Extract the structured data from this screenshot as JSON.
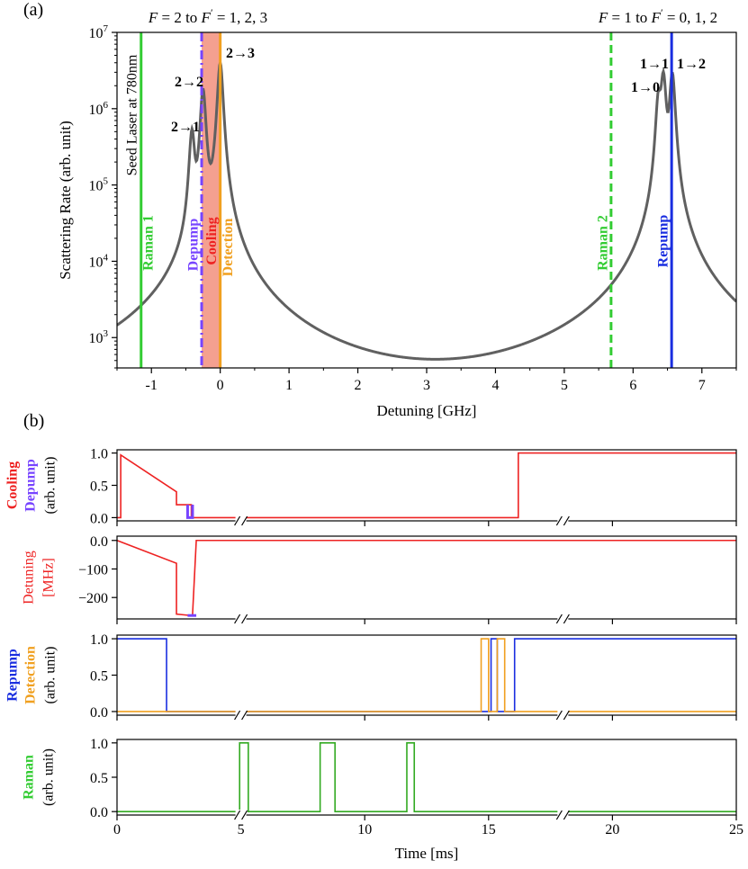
{
  "chart_data": [
    {
      "panel_label": "(a)",
      "type": "line",
      "xlabel": "Detuning [GHz]",
      "ylabel": "Scattering Rate  (arb. unit)",
      "xlim": [
        -1.5,
        7.5
      ],
      "ylim": [
        400,
        10000000
      ],
      "y_scale": "log",
      "x_ticks": [
        "-1",
        "0",
        "1",
        "2",
        "3",
        "4",
        "5",
        "6",
        "7"
      ],
      "y_ticks": [
        {
          "base": "10",
          "exp": "3"
        },
        {
          "base": "10",
          "exp": "4"
        },
        {
          "base": "10",
          "exp": "5"
        },
        {
          "base": "10",
          "exp": "6"
        },
        {
          "base": "10",
          "exp": "7"
        }
      ],
      "header_left": {
        "pre": "F = 2 to F",
        "post": " = 1, 2, 3"
      },
      "header_right": {
        "pre": "F = 1 to F",
        "post": " = 0, 1, 2"
      },
      "series": [
        {
          "color": "#606060",
          "resonances": [
            {
              "label": "2→1",
              "x": -0.41,
              "y": 500000
            },
            {
              "label": "2→2",
              "x": -0.25,
              "y": 1800000
            },
            {
              "label": "2→3",
              "x": 0.0,
              "y": 4000000
            },
            {
              "label": "1→0",
              "x": 6.37,
              "y": 1400000
            },
            {
              "label": "1→1",
              "x": 6.44,
              "y": 2800000
            },
            {
              "label": "1→2",
              "x": 6.57,
              "y": 2900000
            }
          ],
          "minimum": {
            "x": 3.2,
            "y": 520
          }
        }
      ],
      "vertical_lines": [
        {
          "label": "Raman 1",
          "x": -1.15,
          "color": "#33cc33",
          "style": "solid"
        },
        {
          "label": "Depump",
          "x": -0.27,
          "color": "#7744ff",
          "style": "dashdot"
        },
        {
          "label": "Cooling",
          "x": -0.12,
          "color": "#ee2222",
          "style": "band"
        },
        {
          "label": "Detection",
          "x": 0.0,
          "color": "#f0a020",
          "style": "solid"
        },
        {
          "label": "Raman 2",
          "x": 5.68,
          "color": "#33cc33",
          "style": "dashed"
        },
        {
          "label": "Repump",
          "x": 6.56,
          "color": "#1a2ee0",
          "style": "solid"
        }
      ],
      "band": {
        "x": [
          -0.27,
          0.0
        ],
        "color": "#f4a090"
      },
      "annotation": "Seed Laser at 780nm"
    },
    {
      "panel_label": "(b)",
      "type": "line",
      "xlabel": "Time [ms]",
      "xlim": [
        0,
        25
      ],
      "x_ticks": [
        "0",
        "5",
        "10",
        "15",
        "20",
        "25"
      ],
      "axis_breaks": [
        5,
        18
      ],
      "subplots": [
        {
          "ylabels": [
            {
              "text": "Cooling",
              "color": "#ee2222"
            },
            {
              "text": "Depump",
              "color": "#7744ff"
            },
            {
              "text": "(arb. unit)",
              "color": "#000000"
            }
          ],
          "ylim": [
            -0.05,
            1.05
          ],
          "y_ticks": [
            "0.0",
            "0.5",
            "1.0"
          ],
          "series": [
            {
              "name": "Cooling",
              "color": "#ee2222",
              "points": [
                [
                  0,
                  0
                ],
                [
                  0.15,
                  0
                ],
                [
                  0.15,
                  0.97
                ],
                [
                  2.4,
                  0.4
                ],
                [
                  2.4,
                  0.2
                ],
                [
                  3.0,
                  0.2
                ],
                [
                  3.0,
                  0
                ],
                [
                  14.5,
                  0
                ],
                [
                  14.5,
                  0
                ],
                [
                  16.2,
                  0
                ],
                [
                  16.2,
                  1.0
                ],
                [
                  25,
                  1.0
                ]
              ]
            },
            {
              "name": "Depump",
              "color": "#7744ff",
              "points": [
                [
                  2.85,
                  0.2
                ],
                [
                  2.85,
                  0
                ],
                [
                  3.05,
                  0
                ],
                [
                  3.05,
                  0.2
                ]
              ]
            }
          ]
        },
        {
          "ylabels": [
            {
              "text": "Detuning",
              "color": "#ee2222"
            },
            {
              "text": "[MHz]",
              "color": "#ee2222"
            }
          ],
          "ylim": [
            -275,
            15
          ],
          "y_ticks": [
            "0.0",
            "−100",
            "−200"
          ],
          "series": [
            {
              "name": "Detuning",
              "color": "#ee2222",
              "points": [
                [
                  0,
                  0
                ],
                [
                  2.4,
                  -80
                ],
                [
                  2.4,
                  -80
                ],
                [
                  2.4,
                  -258
                ],
                [
                  2.85,
                  -262
                ],
                [
                  3.05,
                  -262
                ],
                [
                  3.05,
                  -258
                ],
                [
                  3.2,
                  0
                ],
                [
                  25,
                  0
                ]
              ]
            },
            {
              "name": "Depump detuning",
              "color": "#7744ff",
              "points": [
                [
                  2.85,
                  -263
                ],
                [
                  3.2,
                  -263
                ]
              ]
            }
          ]
        },
        {
          "ylabels": [
            {
              "text": "Repump",
              "color": "#1a2ee0"
            },
            {
              "text": "Detection",
              "color": "#f0a020"
            },
            {
              "text": "(arb. unit)",
              "color": "#000000"
            }
          ],
          "ylim": [
            -0.05,
            1.05
          ],
          "y_ticks": [
            "0.0",
            "0.5",
            "1.0"
          ],
          "series": [
            {
              "name": "Repump",
              "color": "#1a2ee0",
              "points": [
                [
                  0,
                  1
                ],
                [
                  2.0,
                  1
                ],
                [
                  2.0,
                  0
                ],
                [
                  15.1,
                  0
                ],
                [
                  15.1,
                  1
                ],
                [
                  15.35,
                  1
                ],
                [
                  15.35,
                  0
                ],
                [
                  16.05,
                  0
                ],
                [
                  16.05,
                  1
                ],
                [
                  25,
                  1
                ]
              ]
            },
            {
              "name": "Detection",
              "color": "#f0a020",
              "points": [
                [
                  0,
                  0
                ],
                [
                  14.7,
                  0
                ],
                [
                  14.7,
                  1
                ],
                [
                  15.0,
                  1
                ],
                [
                  15.0,
                  0
                ],
                [
                  15.35,
                  0
                ],
                [
                  15.35,
                  1
                ],
                [
                  15.65,
                  1
                ],
                [
                  15.65,
                  0
                ],
                [
                  25,
                  0
                ]
              ]
            }
          ]
        },
        {
          "ylabels": [
            {
              "text": "Raman",
              "color": "#33cc33"
            },
            {
              "text": "(arb. unit)",
              "color": "#000000"
            }
          ],
          "ylim": [
            -0.05,
            1.05
          ],
          "y_ticks": [
            "0.0",
            "0.5",
            "1.0"
          ],
          "series": [
            {
              "name": "Raman",
              "color": "#33aa22",
              "points": [
                [
                  0,
                  0
                ],
                [
                  4.95,
                  0
                ],
                [
                  4.95,
                  1
                ],
                [
                  5.3,
                  1
                ],
                [
                  5.3,
                  0
                ],
                [
                  8.2,
                  0
                ],
                [
                  8.2,
                  1
                ],
                [
                  8.8,
                  1
                ],
                [
                  8.8,
                  0
                ],
                [
                  11.7,
                  0
                ],
                [
                  11.7,
                  1
                ],
                [
                  12.0,
                  1
                ],
                [
                  12.0,
                  0
                ],
                [
                  25,
                  0
                ]
              ]
            }
          ]
        }
      ]
    }
  ]
}
